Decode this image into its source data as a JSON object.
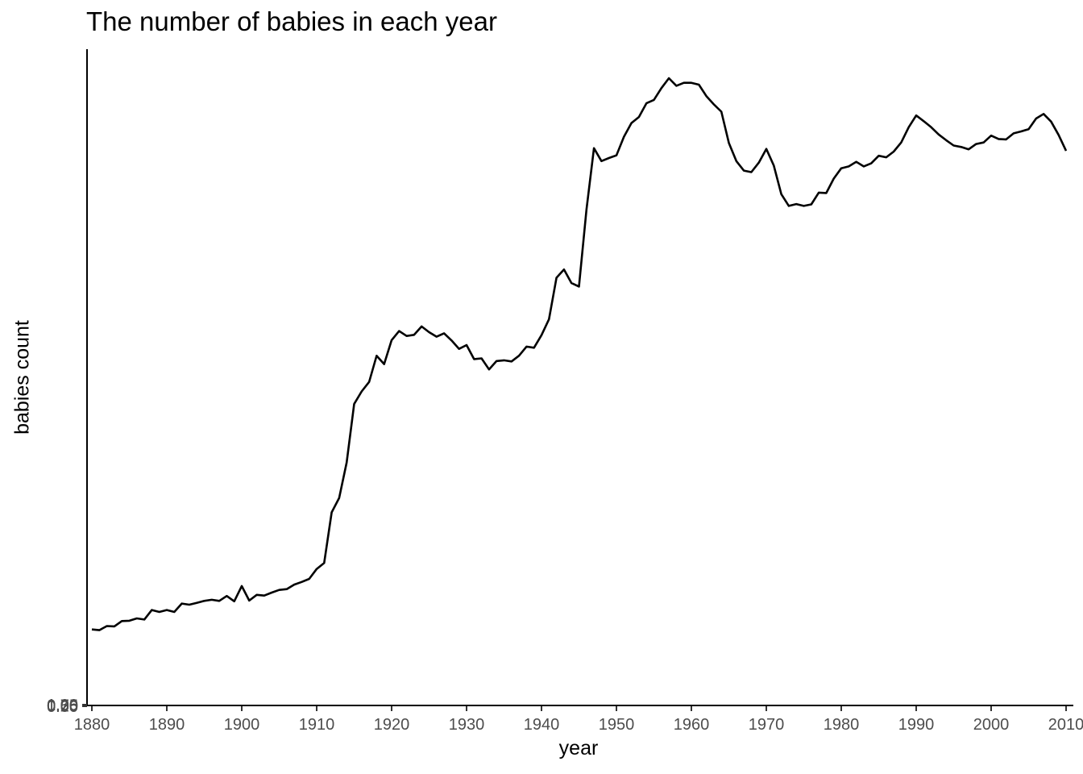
{
  "chart_data": {
    "type": "line",
    "title": "The number of babies in each year",
    "xlabel": "year",
    "ylabel": "babies count",
    "xlim": [
      1880,
      2010
    ],
    "x_ticks": [
      "1880",
      "1890",
      "1900",
      "1910",
      "1920",
      "1930",
      "1940",
      "1950",
      "1960",
      "1970",
      "1980",
      "1990",
      "2000",
      "2010"
    ],
    "y_tick_labels": [
      "0.00",
      "0.25",
      "0.50",
      "0.75",
      "1.00"
    ],
    "grid": false,
    "legend": "none",
    "line_color": "#000000",
    "x": [
      1880,
      1881,
      1882,
      1883,
      1884,
      1885,
      1886,
      1887,
      1888,
      1889,
      1890,
      1891,
      1892,
      1893,
      1894,
      1895,
      1896,
      1897,
      1898,
      1899,
      1900,
      1901,
      1902,
      1903,
      1904,
      1905,
      1906,
      1907,
      1908,
      1909,
      1910,
      1911,
      1912,
      1913,
      1914,
      1915,
      1916,
      1917,
      1918,
      1919,
      1920,
      1921,
      1922,
      1923,
      1924,
      1925,
      1926,
      1927,
      1928,
      1929,
      1930,
      1931,
      1932,
      1933,
      1934,
      1935,
      1936,
      1937,
      1938,
      1939,
      1940,
      1941,
      1942,
      1943,
      1944,
      1945,
      1946,
      1947,
      1948,
      1949,
      1950,
      1951,
      1952,
      1953,
      1954,
      1955,
      1956,
      1957,
      1958,
      1959,
      1960,
      1961,
      1962,
      1963,
      1964,
      1965,
      1966,
      1967,
      1968,
      1969,
      1970,
      1971,
      1972,
      1973,
      1974,
      1975,
      1976,
      1977,
      1978,
      1979,
      1980,
      1981,
      1982,
      1983,
      1984,
      1985,
      1986,
      1987,
      1988,
      1989,
      1990,
      1991,
      1992,
      1993,
      1994,
      1995,
      1996,
      1997,
      1998,
      1999,
      2000,
      2001,
      2002,
      2003,
      2004,
      2005,
      2006,
      2007,
      2008,
      2009,
      2010
    ],
    "values": [
      200000,
      198000,
      209000,
      208000,
      222000,
      223000,
      229000,
      226000,
      251000,
      246000,
      251000,
      246000,
      268000,
      265000,
      270000,
      275000,
      278000,
      275000,
      288000,
      274000,
      314000,
      276000,
      291000,
      289000,
      297000,
      304000,
      306000,
      318000,
      325000,
      333000,
      359000,
      375000,
      508000,
      546000,
      639000,
      793000,
      826000,
      851000,
      920000,
      898000,
      961000,
      985000,
      972000,
      975000,
      997000,
      982000,
      970000,
      979000,
      960000,
      938000,
      948000,
      911000,
      913000,
      884000,
      906000,
      908000,
      905000,
      920000,
      944000,
      941000,
      974000,
      1016000,
      1125000,
      1147000,
      1111000,
      1102000,
      1304000,
      1466000,
      1432000,
      1440000,
      1447000,
      1496000,
      1532000,
      1548000,
      1584000,
      1593000,
      1624000,
      1650000,
      1630000,
      1638000,
      1638000,
      1633000,
      1603000,
      1581000,
      1562000,
      1480000,
      1432000,
      1407000,
      1403000,
      1428000,
      1464000,
      1420000,
      1345000,
      1314000,
      1319000,
      1314000,
      1318000,
      1349000,
      1348000,
      1386000,
      1413000,
      1418000,
      1430000,
      1418000,
      1426000,
      1446000,
      1442000,
      1457000,
      1481000,
      1521000,
      1552000,
      1537000,
      1521000,
      1502000,
      1487000,
      1473000,
      1469000,
      1463000,
      1477000,
      1481000,
      1499000,
      1490000,
      1489000,
      1505000,
      1510000,
      1516000,
      1544000,
      1556000,
      1536000,
      1501000,
      1459000
    ]
  }
}
